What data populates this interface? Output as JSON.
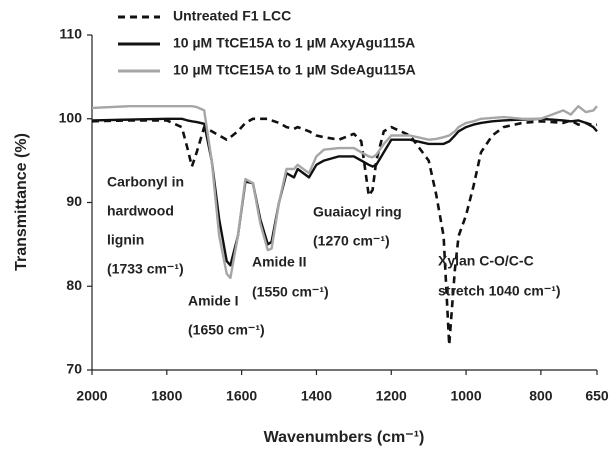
{
  "chart_data": {
    "type": "line",
    "x_label": "Wavenumbers (cm⁻¹)",
    "y_label": "Transmittance (%)",
    "xlim": [
      2000,
      650
    ],
    "xticks": [
      2000,
      1800,
      1600,
      1400,
      1200,
      1000,
      800,
      650
    ],
    "ylim": [
      70,
      110
    ],
    "yticks": [
      70,
      80,
      90,
      100,
      110
    ],
    "grid": false,
    "legend": "upper left",
    "x": [
      2000,
      1900,
      1800,
      1760,
      1745,
      1733,
      1720,
      1700,
      1680,
      1660,
      1640,
      1630,
      1610,
      1590,
      1570,
      1550,
      1530,
      1520,
      1500,
      1480,
      1460,
      1450,
      1420,
      1400,
      1380,
      1340,
      1300,
      1280,
      1260,
      1250,
      1240,
      1220,
      1200,
      1150,
      1100,
      1080,
      1060,
      1045,
      1030,
      1020,
      1000,
      980,
      960,
      930,
      900,
      850,
      800,
      740,
      720,
      700,
      680,
      660,
      650
    ],
    "series": [
      {
        "name": "Untreated F1 LCC",
        "color": "#111111",
        "dash": true,
        "values": [
          99.7,
          99.8,
          99.8,
          99,
          96.5,
          94.3,
          96,
          99,
          98.5,
          98,
          97.5,
          97.8,
          98.5,
          99.5,
          100,
          100,
          100,
          99.8,
          99.5,
          99,
          98.8,
          99,
          98.5,
          98,
          97.8,
          97.5,
          98.2,
          97.3,
          90.8,
          91.5,
          95,
          98.5,
          99,
          98,
          95,
          91,
          86,
          73,
          82,
          86,
          88.5,
          92,
          96,
          98,
          99,
          99.5,
          99.7,
          99.5,
          99.8,
          99.3,
          99.5,
          99.2,
          99.3
        ]
      },
      {
        "name": "10 µM TtCE15A to 1 µM AxyAgu115A",
        "color": "#111111",
        "dash": false,
        "values": [
          99.8,
          99.9,
          100,
          100,
          99.8,
          99.7,
          99.6,
          99.4,
          95,
          88,
          83,
          82.5,
          86,
          92.5,
          92.3,
          88,
          85,
          85.3,
          90,
          93.5,
          93,
          94,
          93,
          94.5,
          95,
          95.5,
          95.5,
          95,
          94.5,
          94.3,
          94.5,
          96,
          97.5,
          97.5,
          97,
          97,
          97,
          97.3,
          98,
          98.5,
          99,
          99.3,
          99.5,
          99.7,
          99.8,
          99.9,
          100,
          99.8,
          99.7,
          99.8,
          99.5,
          99,
          98.5
        ]
      },
      {
        "name": "10 µM TtCE15A to 1 µM SdeAgu115A",
        "color": "#a6a6a6",
        "dash": false,
        "values": [
          101.3,
          101.5,
          101.5,
          101.5,
          101.5,
          101.5,
          101.4,
          101,
          95,
          86,
          81.5,
          81,
          86,
          92.8,
          92.3,
          87.5,
          84.3,
          84.5,
          90,
          94,
          94,
          94.5,
          93.5,
          95.5,
          96.3,
          96.5,
          96.5,
          96,
          95.5,
          95.4,
          95.7,
          97,
          98,
          98,
          97.5,
          97.6,
          97.8,
          98,
          98.5,
          99,
          99.5,
          99.7,
          100,
          100.1,
          100.2,
          100,
          100,
          101,
          100.5,
          101.5,
          100.8,
          101,
          101.5
        ]
      }
    ],
    "annotations": [
      [
        "Carbonyl in",
        "hardwood",
        "lignin",
        "(1733 cm⁻¹)"
      ],
      [
        "Amide I",
        "(1650 cm⁻¹)"
      ],
      [
        "Amide II",
        "(1550 cm⁻¹)"
      ],
      [
        "Guaiacyl ring",
        "(1270 cm⁻¹)"
      ],
      [
        "Xylan C-O/C-C",
        "stretch 1040  cm⁻¹)"
      ]
    ]
  }
}
